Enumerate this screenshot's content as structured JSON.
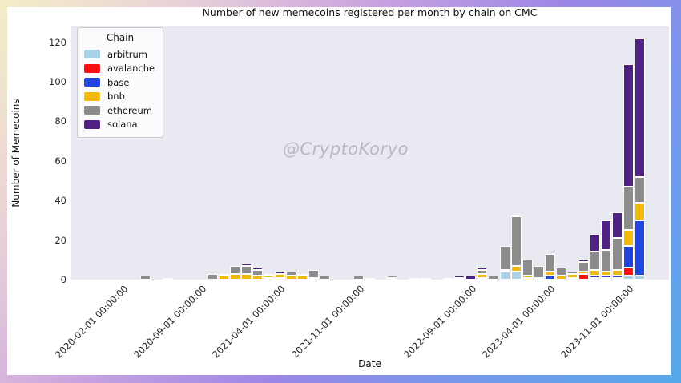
{
  "chart_data": {
    "type": "bar",
    "stacked": true,
    "title": "Number of new memecoins registered per month by chain on CMC",
    "xlabel": "Date",
    "ylabel": "Number of Memecoins",
    "watermark": "@CryptoKoryo",
    "grid": false,
    "plot_background": "#e9e9f1",
    "legend": {
      "title": "Chain",
      "position": "upper-left",
      "entries": [
        {
          "name": "arbitrum",
          "color": "#a9d2e8"
        },
        {
          "name": "avalanche",
          "color": "#fb0f0f"
        },
        {
          "name": "base",
          "color": "#2145de"
        },
        {
          "name": "bnb",
          "color": "#f0b90b"
        },
        {
          "name": "ethereum",
          "color": "#8c8c8c"
        },
        {
          "name": "solana",
          "color": "#4e2183"
        }
      ]
    },
    "y_ticks": [
      0,
      20,
      40,
      60,
      80,
      100,
      120
    ],
    "ylim": [
      0,
      128
    ],
    "x_ticks": [
      {
        "month": "2020-02",
        "label": "2020-02-01 00:00:00"
      },
      {
        "month": "2020-09",
        "label": "2020-09-01 00:00:00"
      },
      {
        "month": "2021-04",
        "label": "2021-04-01 00:00:00"
      },
      {
        "month": "2021-11",
        "label": "2021-11-01 00:00:00"
      },
      {
        "month": "2022-09",
        "label": "2022-09-01 00:00:00"
      },
      {
        "month": "2023-04",
        "label": "2023-04-01 00:00:00"
      },
      {
        "month": "2023-11",
        "label": "2023-11-01 00:00:00"
      }
    ],
    "bars": [
      {
        "month": "2020-04",
        "stack": [
          [
            "ethereum",
            2
          ]
        ]
      },
      {
        "month": "2020-06",
        "stack": [
          [
            "ethereum",
            1
          ]
        ]
      },
      {
        "month": "2020-10",
        "stack": [
          [
            "ethereum",
            3
          ]
        ]
      },
      {
        "month": "2020-11",
        "stack": [
          [
            "bnb",
            2
          ],
          [
            "solana",
            1
          ]
        ]
      },
      {
        "month": "2020-12",
        "stack": [
          [
            "bnb",
            3
          ],
          [
            "ethereum",
            4
          ]
        ]
      },
      {
        "month": "2021-01",
        "stack": [
          [
            "bnb",
            3
          ],
          [
            "ethereum",
            4
          ],
          [
            "solana",
            1
          ]
        ]
      },
      {
        "month": "2021-02",
        "stack": [
          [
            "bnb",
            2
          ],
          [
            "ethereum",
            3
          ],
          [
            "solana",
            1
          ]
        ]
      },
      {
        "month": "2021-03",
        "stack": [
          [
            "base",
            1
          ],
          [
            "bnb",
            1
          ],
          [
            "ethereum",
            1
          ]
        ]
      },
      {
        "month": "2021-04",
        "stack": [
          [
            "avalanche",
            1
          ],
          [
            "bnb",
            2
          ],
          [
            "solana",
            1
          ]
        ]
      },
      {
        "month": "2021-05",
        "stack": [
          [
            "bnb",
            2
          ],
          [
            "ethereum",
            2
          ]
        ]
      },
      {
        "month": "2021-06",
        "stack": [
          [
            "bnb",
            2
          ],
          [
            "solana",
            1
          ]
        ]
      },
      {
        "month": "2021-07",
        "stack": [
          [
            "bnb",
            1
          ],
          [
            "ethereum",
            4
          ]
        ]
      },
      {
        "month": "2021-08",
        "stack": [
          [
            "ethereum",
            2
          ]
        ]
      },
      {
        "month": "2021-11",
        "stack": [
          [
            "ethereum",
            2
          ]
        ]
      },
      {
        "month": "2021-12",
        "stack": [
          [
            "ethereum",
            1
          ]
        ]
      },
      {
        "month": "2022-02",
        "stack": [
          [
            "bnb",
            1
          ],
          [
            "ethereum",
            1
          ]
        ]
      },
      {
        "month": "2022-04",
        "stack": [
          [
            "ethereum",
            1
          ]
        ]
      },
      {
        "month": "2022-05",
        "stack": [
          [
            "ethereum",
            1
          ]
        ]
      },
      {
        "month": "2022-07",
        "stack": [
          [
            "ethereum",
            1
          ]
        ]
      },
      {
        "month": "2022-08",
        "stack": [
          [
            "bnb",
            1
          ],
          [
            "solana",
            1
          ]
        ]
      },
      {
        "month": "2022-09",
        "stack": [
          [
            "solana",
            2
          ]
        ]
      },
      {
        "month": "2022-10",
        "stack": [
          [
            "avalanche",
            1
          ],
          [
            "bnb",
            2
          ],
          [
            "ethereum",
            2
          ],
          [
            "solana",
            1
          ]
        ]
      },
      {
        "month": "2022-11",
        "stack": [
          [
            "ethereum",
            2
          ]
        ]
      },
      {
        "month": "2022-12",
        "stack": [
          [
            "arbitrum",
            4
          ],
          [
            "bnb",
            1
          ],
          [
            "ethereum",
            12
          ]
        ]
      },
      {
        "month": "2023-01",
        "stack": [
          [
            "arbitrum",
            4
          ],
          [
            "bnb",
            3
          ],
          [
            "ethereum",
            25
          ],
          [
            "solana",
            1
          ]
        ]
      },
      {
        "month": "2023-02",
        "stack": [
          [
            "arbitrum",
            1
          ],
          [
            "bnb",
            1
          ],
          [
            "ethereum",
            8
          ]
        ]
      },
      {
        "month": "2023-03",
        "stack": [
          [
            "bnb",
            1
          ],
          [
            "ethereum",
            6
          ]
        ]
      },
      {
        "month": "2023-04",
        "stack": [
          [
            "base",
            2
          ],
          [
            "bnb",
            2
          ],
          [
            "ethereum",
            9
          ]
        ]
      },
      {
        "month": "2023-05",
        "stack": [
          [
            "bnb",
            2
          ],
          [
            "ethereum",
            4
          ]
        ]
      },
      {
        "month": "2023-06",
        "stack": [
          [
            "arbitrum",
            1
          ],
          [
            "bnb",
            2
          ],
          [
            "ethereum",
            1
          ]
        ]
      },
      {
        "month": "2023-07",
        "stack": [
          [
            "avalanche",
            3
          ],
          [
            "bnb",
            1
          ],
          [
            "ethereum",
            5
          ],
          [
            "solana",
            1
          ]
        ]
      },
      {
        "month": "2023-08",
        "stack": [
          [
            "arbitrum",
            1
          ],
          [
            "base",
            1
          ],
          [
            "bnb",
            3
          ],
          [
            "ethereum",
            9
          ],
          [
            "solana",
            9
          ]
        ]
      },
      {
        "month": "2023-09",
        "stack": [
          [
            "arbitrum",
            1
          ],
          [
            "base",
            1
          ],
          [
            "bnb",
            2
          ],
          [
            "ethereum",
            11
          ],
          [
            "solana",
            15
          ]
        ]
      },
      {
        "month": "2023-10",
        "stack": [
          [
            "arbitrum",
            1
          ],
          [
            "base",
            1
          ],
          [
            "bnb",
            3
          ],
          [
            "ethereum",
            16
          ],
          [
            "solana",
            13
          ]
        ]
      },
      {
        "month": "2023-11",
        "stack": [
          [
            "arbitrum",
            2
          ],
          [
            "avalanche",
            4
          ],
          [
            "base",
            11
          ],
          [
            "bnb",
            8
          ],
          [
            "ethereum",
            22
          ],
          [
            "solana",
            62
          ]
        ]
      },
      {
        "month": "2023-12",
        "stack": [
          [
            "arbitrum",
            2
          ],
          [
            "base",
            28
          ],
          [
            "bnb",
            9
          ],
          [
            "ethereum",
            13
          ],
          [
            "solana",
            70
          ]
        ]
      }
    ]
  }
}
